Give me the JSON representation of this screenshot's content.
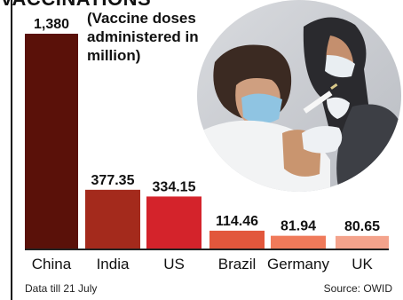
{
  "header": {
    "title": "VACCINATIONS",
    "subtitle": "(Vaccine doses administered in million)"
  },
  "footer": {
    "note": "Data till 21 July",
    "source": "Source: OWID"
  },
  "photo": {
    "icon": "vaccination-photo"
  },
  "colors": {
    "China": "#5a1109",
    "India": "#a42a1c",
    "US": "#d4232b",
    "Brazil": "#e2573c",
    "Germany": "#f07a5a",
    "UK": "#f4a38c",
    "text": "#111111"
  },
  "chart_data": {
    "type": "bar",
    "categories": [
      "China",
      "India",
      "US",
      "Brazil",
      "Germany",
      "UK"
    ],
    "values": [
      1380,
      377.35,
      334.15,
      114.46,
      81.94,
      80.65
    ],
    "value_labels": [
      "1,380",
      "377.35",
      "334.15",
      "114.46",
      "81.94",
      "80.65"
    ],
    "title": "VACCINATIONS",
    "subtitle": "(Vaccine doses administered in million)",
    "xlabel": "",
    "ylabel": "",
    "ylim": [
      0,
      1380
    ],
    "grid": false,
    "legend": "none"
  }
}
